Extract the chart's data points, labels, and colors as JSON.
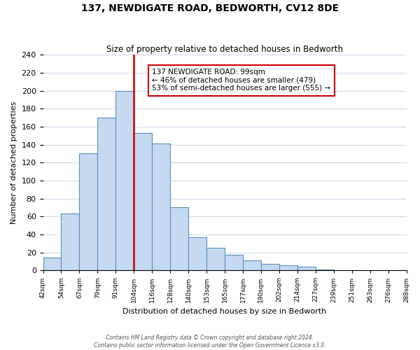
{
  "title": "137, NEWDIGATE ROAD, BEDWORTH, CV12 8DE",
  "subtitle": "Size of property relative to detached houses in Bedworth",
  "xlabel": "Distribution of detached houses by size in Bedworth",
  "ylabel": "Number of detached properties",
  "bin_labels": [
    "42sqm",
    "54sqm",
    "67sqm",
    "79sqm",
    "91sqm",
    "104sqm",
    "116sqm",
    "128sqm",
    "140sqm",
    "153sqm",
    "165sqm",
    "177sqm",
    "190sqm",
    "202sqm",
    "214sqm",
    "227sqm",
    "239sqm",
    "251sqm",
    "263sqm",
    "276sqm",
    "288sqm"
  ],
  "bar_values": [
    14,
    63,
    130,
    170,
    200,
    153,
    141,
    70,
    37,
    25,
    17,
    11,
    7,
    6,
    4,
    1,
    0,
    0,
    0,
    0
  ],
  "bar_color": "#c5d9f0",
  "bar_edge_color": "#5a8fc3",
  "property_line_label": "137 NEWDIGATE ROAD: 99sqm",
  "annotation_line1": "← 46% of detached houses are smaller (479)",
  "annotation_line2": "53% of semi-detached houses are larger (555) →",
  "vline_color": "#cc0000",
  "vline_x": 5.0,
  "ylim": [
    0,
    240
  ],
  "yticks": [
    0,
    20,
    40,
    60,
    80,
    100,
    120,
    140,
    160,
    180,
    200,
    220,
    240
  ],
  "footer_line1": "Contains HM Land Registry data © Crown copyright and database right 2024.",
  "footer_line2": "Contains public sector information licensed under the Open Government Licence v3.0.",
  "background_color": "#ffffff",
  "grid_color": "#d0d8e8"
}
